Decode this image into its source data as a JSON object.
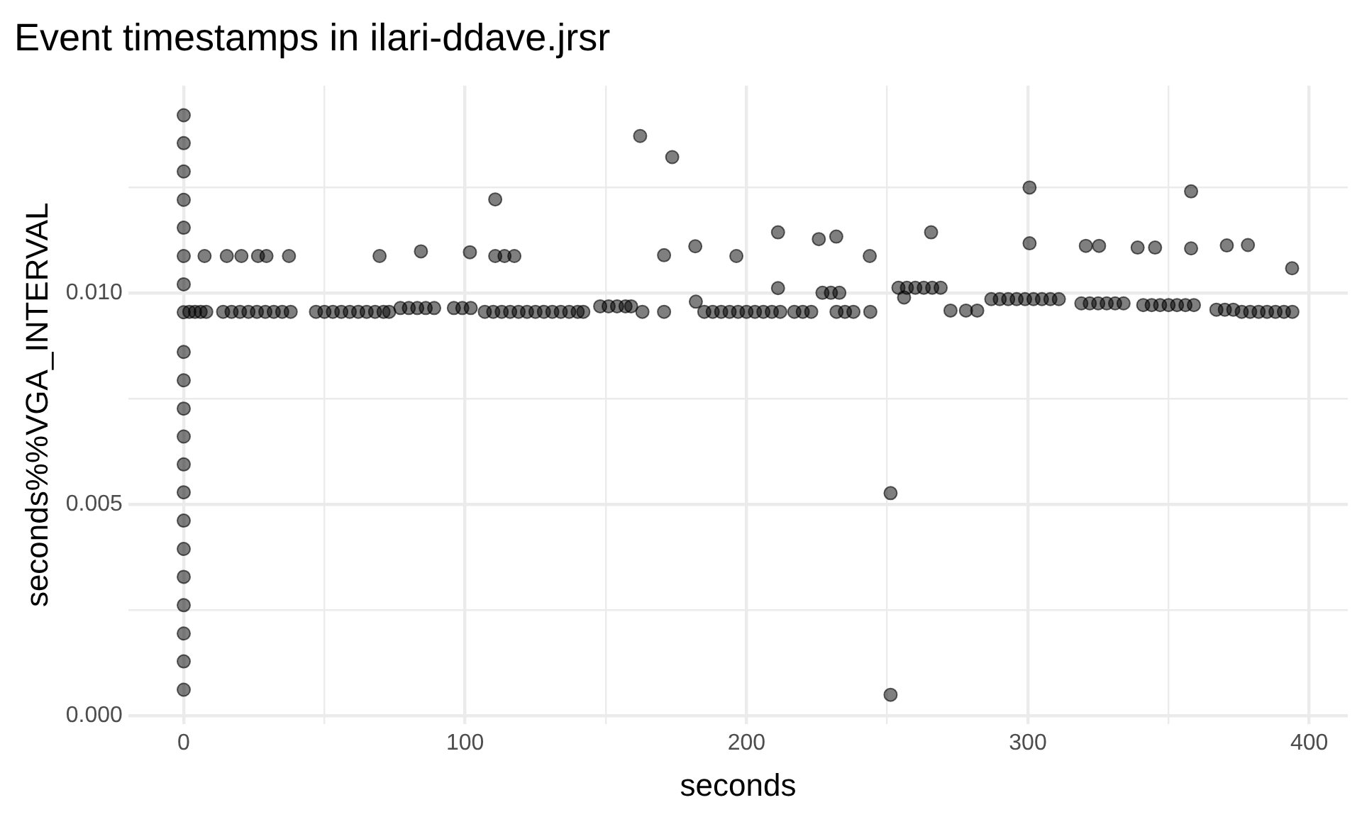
{
  "chart_data": {
    "type": "scatter",
    "title": "Event timestamps in ilari-ddave.jrsr",
    "xlabel": "seconds",
    "ylabel": "seconds%%VGA_INTERVAL",
    "grid": true,
    "legend": false,
    "marker": "circle",
    "xlim": [
      -19.7,
      413.7
    ],
    "ylim": [
      -0.0002,
      0.0149
    ],
    "xticks": [
      0,
      {
        "value": 50,
        "label": null
      },
      100,
      {
        "value": 150,
        "label": null
      },
      200,
      {
        "value": 250,
        "label": null
      },
      300,
      {
        "value": 350,
        "label": null
      },
      400
    ],
    "yticks": [
      {
        "value": 0,
        "label": "0.000"
      },
      {
        "value": 0.0025,
        "label": null
      },
      0.005,
      {
        "value": 0.0075,
        "label": null
      },
      {
        "value": 0.01,
        "label": "0.010"
      },
      {
        "value": 0.0125,
        "label": null
      }
    ],
    "series": [
      {
        "color": "#000000",
        "x": [
          0,
          0,
          0,
          0,
          0,
          0,
          0,
          0,
          0,
          0,
          0,
          0,
          0,
          0,
          0,
          0,
          0,
          0,
          0,
          0,
          0,
          2,
          4,
          6,
          8,
          14,
          17,
          20,
          23,
          26,
          29,
          32,
          35,
          38,
          47,
          50,
          53,
          56,
          59,
          62,
          65,
          68,
          71,
          73,
          77,
          80,
          83,
          86,
          89,
          96,
          99,
          102,
          107,
          110,
          113,
          116,
          119,
          122,
          125,
          128,
          131,
          134,
          137,
          140,
          142,
          148,
          151,
          154,
          157,
          159,
          163,
          170.7,
          182,
          185,
          188,
          191,
          194,
          197,
          200,
          203,
          206,
          209,
          212,
          217,
          220,
          223,
          227,
          230,
          233,
          232,
          235,
          238,
          244,
          254,
          257,
          260,
          263,
          266,
          269,
          256,
          272.5,
          278,
          282,
          287,
          290,
          293,
          296,
          299,
          302,
          305,
          308,
          311,
          319,
          322,
          325,
          328,
          331,
          334,
          341,
          344,
          347,
          350,
          353,
          356,
          359,
          367,
          370,
          373,
          376,
          379,
          382,
          385,
          388,
          391,
          394,
          7.4,
          15.3,
          20.5,
          26.4,
          29.4,
          37.4,
          69.6,
          84.3,
          101.7,
          110.7,
          114,
          117.5,
          110.7,
          162.2,
          173.6,
          170.7,
          181.8,
          196.4,
          211.2,
          211.2,
          225.7,
          231.9,
          243.8,
          251.2,
          251.2,
          265.6,
          300.6,
          300.6,
          320.6,
          325.3,
          339,
          345.2,
          358,
          358,
          370.7,
          378.2,
          393.9
        ],
        "values": [
          0.0142,
          0.01354,
          0.01287,
          0.0122,
          0.01154,
          0.01087,
          0.0102,
          0.00954,
          0.0086,
          0.00793,
          0.00726,
          0.0066,
          0.00594,
          0.00528,
          0.00461,
          0.00394,
          0.00328,
          0.00261,
          0.00194,
          0.00128,
          0.00061,
          0.00955,
          0.00955,
          0.00955,
          0.00955,
          0.00955,
          0.00955,
          0.00955,
          0.00955,
          0.00955,
          0.00955,
          0.00955,
          0.00955,
          0.00955,
          0.00955,
          0.00955,
          0.00955,
          0.00955,
          0.00955,
          0.00955,
          0.00955,
          0.00955,
          0.00955,
          0.00955,
          0.00964,
          0.00964,
          0.00964,
          0.00964,
          0.00964,
          0.00964,
          0.00964,
          0.00964,
          0.00955,
          0.00955,
          0.00955,
          0.00955,
          0.00955,
          0.00955,
          0.00955,
          0.00955,
          0.00955,
          0.00955,
          0.00955,
          0.00955,
          0.00955,
          0.00968,
          0.00968,
          0.00968,
          0.00968,
          0.00968,
          0.00955,
          0.00955,
          0.00979,
          0.00955,
          0.00955,
          0.00955,
          0.00955,
          0.00955,
          0.00955,
          0.00955,
          0.00955,
          0.00955,
          0.00955,
          0.00955,
          0.00955,
          0.00955,
          0.01,
          0.01,
          0.01,
          0.00955,
          0.00955,
          0.00955,
          0.00955,
          0.01012,
          0.01012,
          0.01012,
          0.01012,
          0.01012,
          0.01012,
          0.00989,
          0.00958,
          0.00958,
          0.00958,
          0.00985,
          0.00985,
          0.00985,
          0.00985,
          0.00985,
          0.00985,
          0.00985,
          0.00985,
          0.00985,
          0.00975,
          0.00975,
          0.00975,
          0.00975,
          0.00975,
          0.00975,
          0.00971,
          0.00971,
          0.00971,
          0.00971,
          0.00971,
          0.00971,
          0.00971,
          0.0096,
          0.0096,
          0.0096,
          0.00955,
          0.00955,
          0.00955,
          0.00955,
          0.00955,
          0.00955,
          0.00955,
          0.01087,
          0.01087,
          0.01087,
          0.01087,
          0.01087,
          0.01087,
          0.01087,
          0.01098,
          0.01096,
          0.01087,
          0.01087,
          0.01087,
          0.01221,
          0.01371,
          0.01321,
          0.01089,
          0.0111,
          0.01087,
          0.01143,
          0.01011,
          0.01127,
          0.01133,
          0.01087,
          0.00526,
          0.00049,
          0.01143,
          0.01249,
          0.01117,
          0.01111,
          0.01111,
          0.01107,
          0.01107,
          0.0124,
          0.01105,
          0.01112,
          0.01113,
          0.01058
        ]
      }
    ]
  }
}
